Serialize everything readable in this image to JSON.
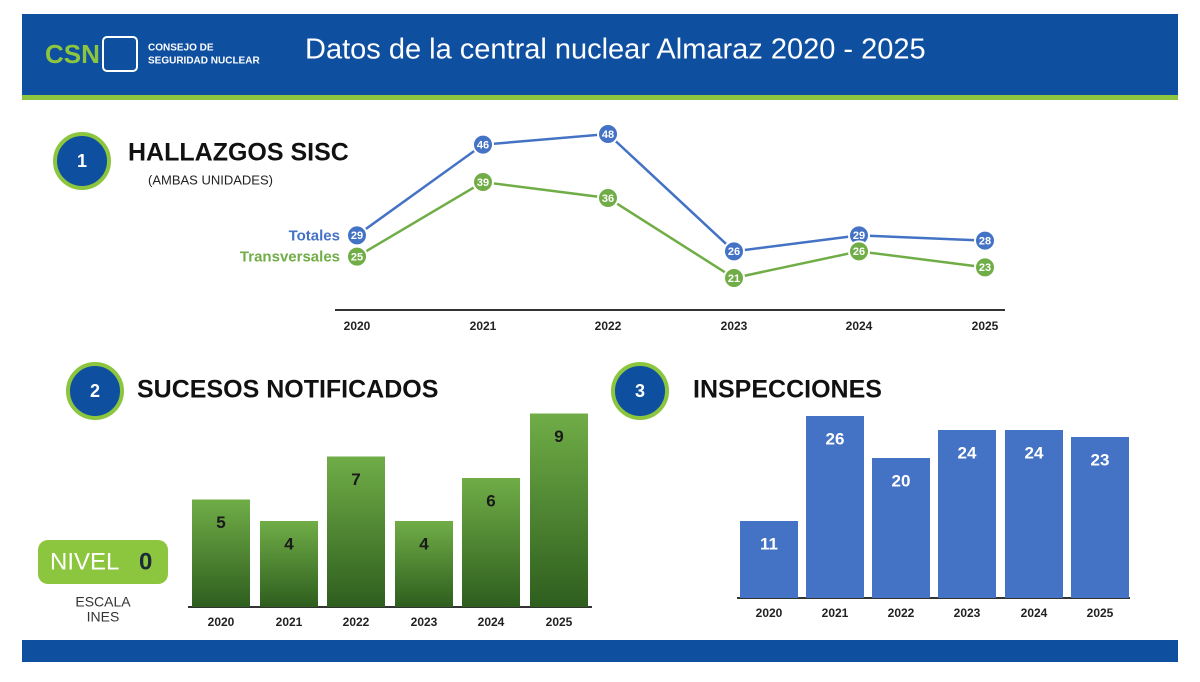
{
  "header": {
    "logo": "CSN",
    "org_line1": "CONSEJO DE",
    "org_line2": "SEGURIDAD NUCLEAR",
    "title": "Datos de la central nuclear Almaraz 2020 - 2025"
  },
  "ines": {
    "label": "NIVEL",
    "level": 0,
    "scale_line1": "ESCALA",
    "scale_line2": "INES"
  },
  "chart_data": [
    {
      "type": "line",
      "number": 1,
      "title": "HALLAZGOS SISC",
      "subtitle": "(AMBAS UNIDADES)",
      "categories": [
        "2020",
        "2021",
        "2022",
        "2023",
        "2024",
        "2025"
      ],
      "series": [
        {
          "name": "Totales",
          "color": "#4472c4",
          "values": [
            29,
            46,
            48,
            26,
            29,
            28
          ]
        },
        {
          "name": "Transversales",
          "color": "#70ad47",
          "values": [
            25,
            39,
            36,
            21,
            26,
            23
          ]
        }
      ]
    },
    {
      "type": "bar",
      "number": 2,
      "title": "SUCESOS NOTIFICADOS",
      "categories": [
        "2020",
        "2021",
        "2022",
        "2023",
        "2024",
        "2025"
      ],
      "values": [
        5,
        4,
        7,
        4,
        6,
        9
      ],
      "color": "#70ad47"
    },
    {
      "type": "bar",
      "number": 3,
      "title": "INSPECCIONES",
      "categories": [
        "2020",
        "2021",
        "2022",
        "2023",
        "2024",
        "2025"
      ],
      "values": [
        11,
        26,
        20,
        24,
        24,
        23
      ],
      "color": "#4472c4"
    }
  ]
}
